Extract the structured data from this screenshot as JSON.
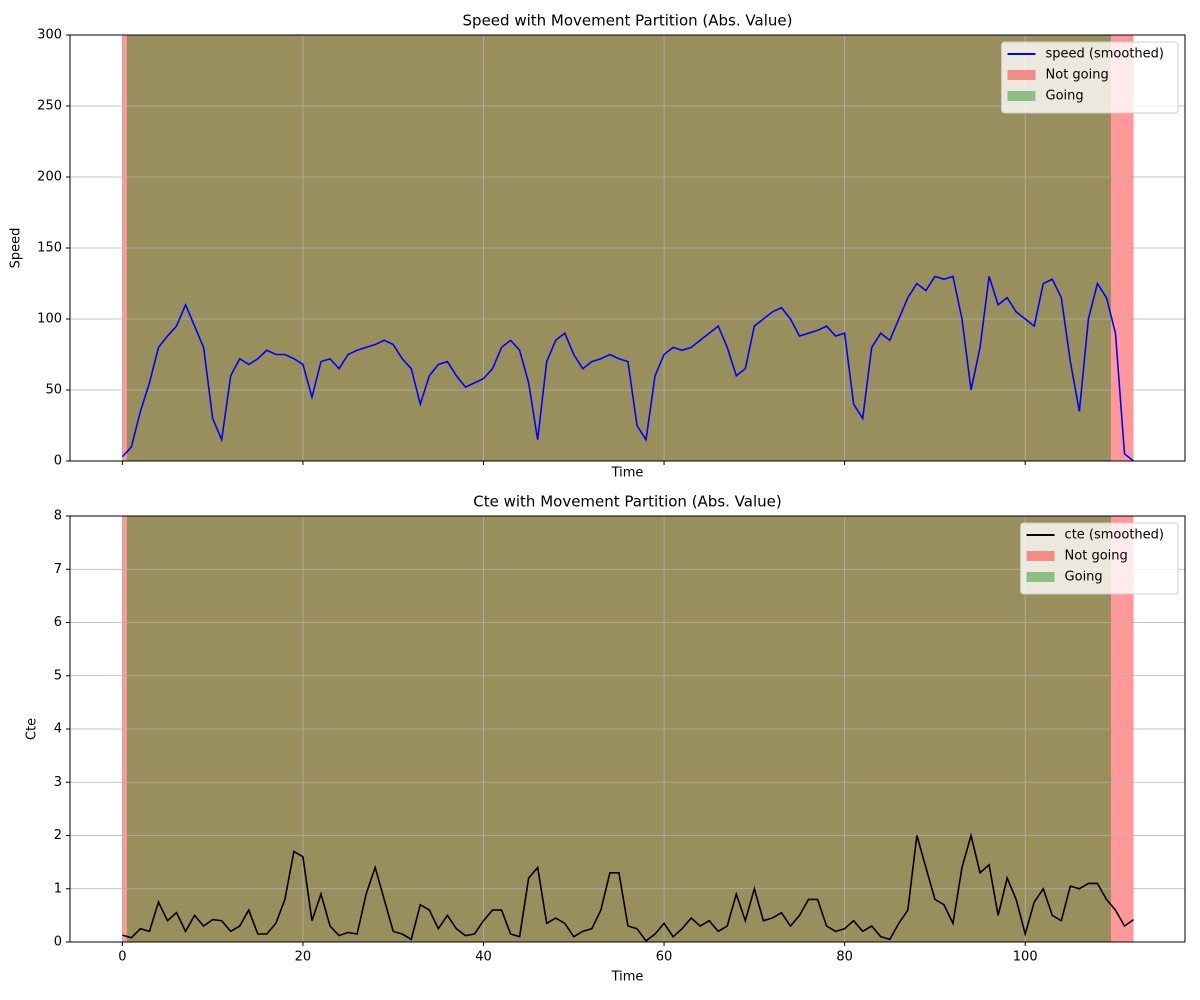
{
  "chart_data": [
    {
      "type": "line",
      "title": "Speed with Movement Partition (Abs. Value)",
      "xlabel": "Time",
      "ylabel": "Speed",
      "xlim": [
        -5.8,
        117.7
      ],
      "xticks": [
        0,
        20,
        40,
        60,
        80,
        100
      ],
      "show_xtick_labels": false,
      "ylim": [
        0,
        300
      ],
      "yticks": [
        0,
        50,
        100,
        150,
        200,
        250,
        300
      ],
      "grid": true,
      "legend": "upper right",
      "x": [
        0,
        1,
        2,
        3,
        4,
        5,
        6,
        7,
        8,
        9,
        10,
        11,
        12,
        13,
        14,
        15,
        16,
        17,
        18,
        19,
        20,
        21,
        22,
        23,
        24,
        25,
        26,
        27,
        28,
        29,
        30,
        31,
        32,
        33,
        34,
        35,
        36,
        37,
        38,
        39,
        40,
        41,
        42,
        43,
        44,
        45,
        46,
        47,
        48,
        49,
        50,
        51,
        52,
        53,
        54,
        55,
        56,
        57,
        58,
        59,
        60,
        61,
        62,
        63,
        64,
        65,
        66,
        67,
        68,
        69,
        70,
        71,
        72,
        73,
        74,
        75,
        76,
        77,
        78,
        79,
        80,
        81,
        82,
        83,
        84,
        85,
        86,
        87,
        88,
        89,
        90,
        91,
        92,
        93,
        94,
        95,
        96,
        97,
        98,
        99,
        100,
        101,
        102,
        103,
        104,
        105,
        106,
        107,
        108,
        109,
        110,
        111,
        112
      ],
      "series": [
        {
          "name": "speed (smoothed)",
          "color": "#0000ff",
          "values": [
            3,
            10,
            35,
            55,
            80,
            88,
            95,
            110,
            95,
            80,
            30,
            15,
            60,
            72,
            68,
            72,
            78,
            75,
            75,
            72,
            68,
            45,
            70,
            72,
            65,
            75,
            78,
            80,
            82,
            85,
            82,
            72,
            65,
            40,
            60,
            68,
            70,
            60,
            52,
            55,
            58,
            65,
            80,
            85,
            78,
            55,
            15,
            70,
            85,
            90,
            75,
            65,
            70,
            72,
            75,
            72,
            70,
            25,
            15,
            60,
            75,
            80,
            78,
            80,
            85,
            90,
            95,
            80,
            60,
            65,
            95,
            100,
            105,
            108,
            100,
            88,
            90,
            92,
            95,
            88,
            90,
            40,
            30,
            80,
            90,
            85,
            100,
            115,
            125,
            120,
            130,
            128,
            130,
            100,
            50,
            80,
            130,
            110,
            115,
            105,
            100,
            95,
            125,
            128,
            115,
            70,
            35,
            100,
            125,
            115,
            90,
            5,
            0
          ]
        }
      ],
      "spans": [
        {
          "name": "Not going",
          "color": "#ff0000",
          "alpha": 0.4,
          "ranges": [
            [
              0,
              112
            ]
          ]
        },
        {
          "name": "Going",
          "color": "#008000",
          "alpha": 0.4,
          "ranges": [
            [
              0.5,
              109.5
            ]
          ]
        }
      ]
    },
    {
      "type": "line",
      "title": "Cte with Movement Partition (Abs. Value)",
      "xlabel": "Time",
      "ylabel": "Cte",
      "xlim": [
        -5.8,
        117.7
      ],
      "xticks": [
        0,
        20,
        40,
        60,
        80,
        100
      ],
      "show_xtick_labels": true,
      "ylim": [
        0,
        8
      ],
      "yticks": [
        0,
        1,
        2,
        3,
        4,
        5,
        6,
        7,
        8
      ],
      "grid": true,
      "legend": "upper right",
      "x": [
        0,
        1,
        2,
        3,
        4,
        5,
        6,
        7,
        8,
        9,
        10,
        11,
        12,
        13,
        14,
        15,
        16,
        17,
        18,
        19,
        20,
        21,
        22,
        23,
        24,
        25,
        26,
        27,
        28,
        29,
        30,
        31,
        32,
        33,
        34,
        35,
        36,
        37,
        38,
        39,
        40,
        41,
        42,
        43,
        44,
        45,
        46,
        47,
        48,
        49,
        50,
        51,
        52,
        53,
        54,
        55,
        56,
        57,
        58,
        59,
        60,
        61,
        62,
        63,
        64,
        65,
        66,
        67,
        68,
        69,
        70,
        71,
        72,
        73,
        74,
        75,
        76,
        77,
        78,
        79,
        80,
        81,
        82,
        83,
        84,
        85,
        86,
        87,
        88,
        89,
        90,
        91,
        92,
        93,
        94,
        95,
        96,
        97,
        98,
        99,
        100,
        101,
        102,
        103,
        104,
        105,
        106,
        107,
        108,
        109,
        110,
        111,
        112
      ],
      "series": [
        {
          "name": "cte (smoothed)",
          "color": "#000000",
          "values": [
            0.13,
            0.08,
            0.25,
            0.2,
            0.75,
            0.4,
            0.55,
            0.2,
            0.5,
            0.3,
            0.42,
            0.4,
            0.2,
            0.3,
            0.6,
            0.15,
            0.15,
            0.35,
            0.8,
            1.7,
            1.6,
            0.4,
            0.9,
            0.3,
            0.12,
            0.18,
            0.15,
            0.9,
            1.4,
            0.8,
            0.2,
            0.15,
            0.05,
            0.7,
            0.6,
            0.25,
            0.5,
            0.25,
            0.12,
            0.15,
            0.4,
            0.6,
            0.6,
            0.15,
            0.1,
            1.2,
            1.4,
            0.35,
            0.45,
            0.35,
            0.1,
            0.2,
            0.25,
            0.6,
            1.3,
            1.3,
            0.3,
            0.25,
            0.02,
            0.15,
            0.35,
            0.1,
            0.25,
            0.45,
            0.3,
            0.4,
            0.2,
            0.3,
            0.9,
            0.4,
            1.0,
            0.4,
            0.45,
            0.55,
            0.3,
            0.5,
            0.8,
            0.8,
            0.3,
            0.2,
            0.25,
            0.4,
            0.2,
            0.3,
            0.1,
            0.05,
            0.35,
            0.6,
            2.0,
            1.4,
            0.8,
            0.7,
            0.35,
            1.4,
            2.0,
            1.3,
            1.45,
            0.5,
            1.2,
            0.8,
            0.15,
            0.75,
            1.0,
            0.5,
            0.4,
            1.05,
            1.0,
            1.1,
            1.1,
            0.8,
            0.6,
            0.3,
            0.42
          ]
        }
      ],
      "spans": [
        {
          "name": "Not going",
          "color": "#ff0000",
          "alpha": 0.4,
          "ranges": [
            [
              0,
              112
            ]
          ]
        },
        {
          "name": "Going",
          "color": "#008000",
          "alpha": 0.4,
          "ranges": [
            [
              0.5,
              109.5
            ]
          ]
        }
      ]
    }
  ]
}
